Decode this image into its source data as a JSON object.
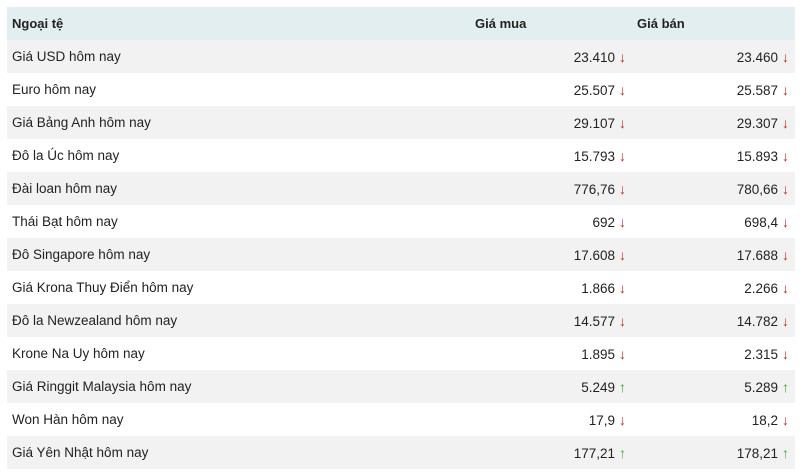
{
  "header": {
    "currency": "Ngoại tệ",
    "buy": "Giá mua",
    "sell": "Giá bán"
  },
  "colors": {
    "down": "#c62828",
    "up": "#43a83f",
    "header_bg": "#e2eeef",
    "stripe": "#f2f2f2"
  },
  "rows": [
    {
      "name": "Giá USD hôm nay",
      "buy": "23.410",
      "buy_trend": "down",
      "sell": "23.460",
      "sell_trend": "down"
    },
    {
      "name": "Euro hôm nay",
      "buy": "25.507",
      "buy_trend": "down",
      "sell": "25.587",
      "sell_trend": "down"
    },
    {
      "name": "Giá Bảng Anh hôm nay",
      "buy": "29.107",
      "buy_trend": "down",
      "sell": "29.307",
      "sell_trend": "down"
    },
    {
      "name": "Đô la Úc hôm nay",
      "buy": "15.793",
      "buy_trend": "down",
      "sell": "15.893",
      "sell_trend": "down"
    },
    {
      "name": "Đài loan hôm nay",
      "buy": "776,76",
      "buy_trend": "down",
      "sell": "780,66",
      "sell_trend": "down"
    },
    {
      "name": "Thái Bạt hôm nay",
      "buy": "692",
      "buy_trend": "down",
      "sell": "698,4",
      "sell_trend": "down"
    },
    {
      "name": "Đô Singapore hôm nay",
      "buy": "17.608",
      "buy_trend": "down",
      "sell": "17.688",
      "sell_trend": "down"
    },
    {
      "name": "Giá Krona Thuy Điển hôm nay",
      "buy": "1.866",
      "buy_trend": "down",
      "sell": "2.266",
      "sell_trend": "down"
    },
    {
      "name": "Đô la Newzealand hôm nay",
      "buy": "14.577",
      "buy_trend": "down",
      "sell": "14.782",
      "sell_trend": "down"
    },
    {
      "name": "Krone Na Uy hôm nay",
      "buy": "1.895",
      "buy_trend": "down",
      "sell": "2.315",
      "sell_trend": "down"
    },
    {
      "name": "Giá Ringgit Malaysia hôm nay",
      "buy": "5.249",
      "buy_trend": "up",
      "sell": "5.289",
      "sell_trend": "up"
    },
    {
      "name": "Won Hàn hôm nay",
      "buy": "17,9",
      "buy_trend": "down",
      "sell": "18,2",
      "sell_trend": "down"
    },
    {
      "name": "Giá Yên Nhật hôm nay",
      "buy": "177,21",
      "buy_trend": "up",
      "sell": "178,21",
      "sell_trend": "up"
    }
  ]
}
